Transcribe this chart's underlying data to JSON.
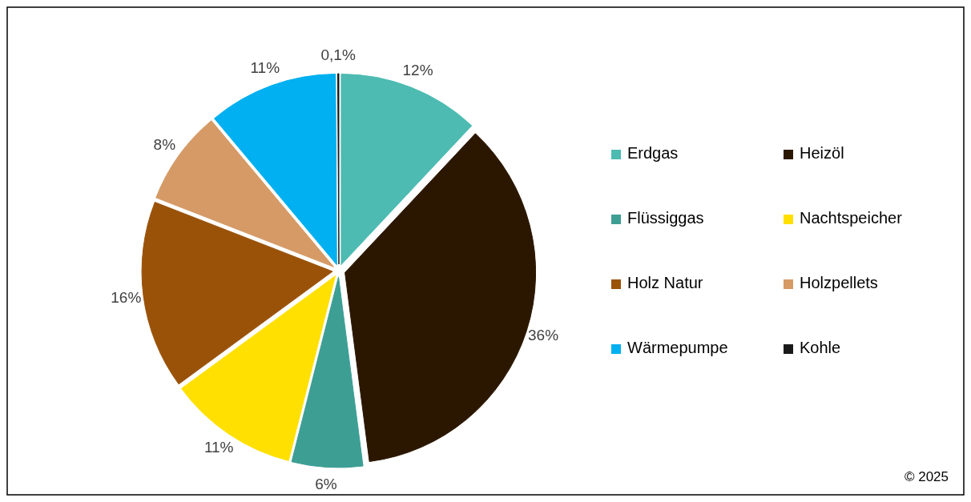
{
  "chart_data": {
    "type": "pie",
    "categories": [
      "Erdgas",
      "Heizöl",
      "Flüssiggas",
      "Nachtspeicher",
      "Holz Natur",
      "Holzpellets",
      "Wärmepumpe",
      "Kohle"
    ],
    "values": [
      12,
      36,
      6,
      11,
      16,
      8,
      11,
      0.1
    ],
    "colors": [
      "#4dbbb2",
      "#2b1700",
      "#3d9e94",
      "#ffe000",
      "#9a5209",
      "#d59a66",
      "#00b0f0",
      "#1a1a1a"
    ],
    "value_labels": [
      "12%",
      "36%",
      "6%",
      "11%",
      "16%",
      "8%",
      "11%",
      "0,1%"
    ],
    "legend": "right",
    "annotations": [
      "© 2025"
    ]
  }
}
